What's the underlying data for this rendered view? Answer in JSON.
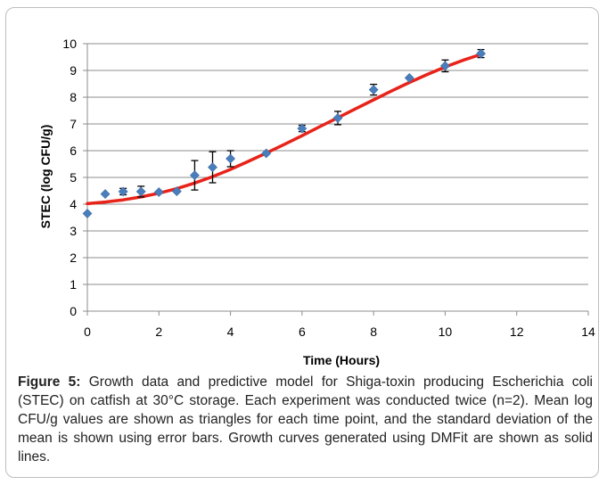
{
  "chart_data": {
    "type": "scatter",
    "title": "",
    "xlabel": "Time (Hours)",
    "ylabel": "STEC (log CFU/g)",
    "xlim": [
      0,
      14
    ],
    "ylim": [
      0,
      10
    ],
    "xticks": [
      0,
      2,
      4,
      6,
      8,
      10,
      12,
      14
    ],
    "yticks": [
      0,
      1,
      2,
      3,
      4,
      5,
      6,
      7,
      8,
      9,
      10
    ],
    "grid": "horizontal",
    "legend": "none",
    "colors": {
      "points": "#4a7ebb",
      "curve": "#e8231a",
      "error_bars": "#000000"
    },
    "observed": {
      "x": [
        0,
        0.5,
        1,
        1.5,
        2,
        2.5,
        3,
        3.5,
        4,
        5,
        6,
        7,
        8,
        9,
        10,
        11
      ],
      "y": [
        3.65,
        4.38,
        4.47,
        4.47,
        4.45,
        4.48,
        5.08,
        5.38,
        5.7,
        5.9,
        6.83,
        7.22,
        8.28,
        8.72,
        9.17,
        9.63
      ],
      "err": [
        0,
        0,
        0.12,
        0.2,
        0,
        0,
        0.55,
        0.58,
        0.3,
        0,
        0.12,
        0.25,
        0.2,
        0,
        0.22,
        0.15
      ]
    },
    "model_curve": {
      "x": [
        0,
        0.5,
        1,
        1.5,
        2,
        2.5,
        3,
        3.5,
        4,
        4.5,
        5,
        5.5,
        6,
        6.5,
        7,
        7.5,
        8,
        8.5,
        9,
        9.5,
        10,
        10.5,
        11
      ],
      "y": [
        4.02,
        4.08,
        4.16,
        4.27,
        4.41,
        4.58,
        4.79,
        5.03,
        5.3,
        5.6,
        5.91,
        6.23,
        6.56,
        6.9,
        7.23,
        7.57,
        7.9,
        8.23,
        8.55,
        8.85,
        9.13,
        9.38,
        9.6
      ]
    }
  },
  "caption": {
    "label": "Figure 5:",
    "text": " Growth data and predictive model for Shiga-toxin producing Escherichia coli (STEC) on catfish at 30°C storage. Each experiment was conducted twice (n=2). Mean log CFU/g values are shown as triangles for each time point, and the standard deviation of the mean is shown using error bars. Growth curves generated using DMFit are shown as solid lines."
  }
}
